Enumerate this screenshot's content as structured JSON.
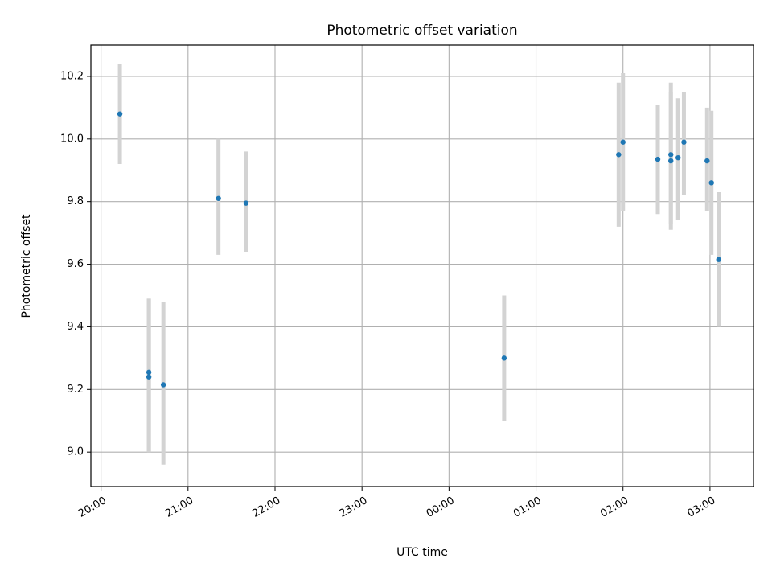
{
  "chart_data": {
    "type": "scatter",
    "title": "Photometric offset variation",
    "xlabel": "UTC time",
    "ylabel": "Photometric offset",
    "xlim": [
      "19:53",
      "03:30"
    ],
    "ylim": [
      8.89,
      10.3
    ],
    "x_ticks": [
      "20:00",
      "21:00",
      "22:00",
      "23:00",
      "00:00",
      "01:00",
      "02:00",
      "03:00"
    ],
    "y_ticks": [
      "9.0",
      "9.2",
      "9.4",
      "9.6",
      "9.8",
      "10.0",
      "10.2"
    ],
    "grid": true,
    "point_color": "#1f77b4",
    "errorbar_color": "#d3d3d3",
    "series": [
      {
        "points": [
          {
            "t": "20:13",
            "y": 10.08,
            "err_low": 9.92,
            "err_high": 10.24
          },
          {
            "t": "20:33",
            "y": 9.255,
            "err_low": 9.0,
            "err_high": 9.49
          },
          {
            "t": "20:33",
            "y": 9.24,
            "err_low": 9.0,
            "err_high": 9.49
          },
          {
            "t": "20:43",
            "y": 9.215,
            "err_low": 8.96,
            "err_high": 9.48
          },
          {
            "t": "21:21",
            "y": 9.81,
            "err_low": 9.63,
            "err_high": 10.0
          },
          {
            "t": "21:40",
            "y": 9.795,
            "err_low": 9.64,
            "err_high": 9.96
          },
          {
            "t": "00:38",
            "y": 9.3,
            "err_low": 9.1,
            "err_high": 9.5
          },
          {
            "t": "01:57",
            "y": 9.95,
            "err_low": 9.72,
            "err_high": 10.18
          },
          {
            "t": "02:00",
            "y": 9.99,
            "err_low": 9.77,
            "err_high": 10.21
          },
          {
            "t": "02:24",
            "y": 9.935,
            "err_low": 9.76,
            "err_high": 10.11
          },
          {
            "t": "02:33",
            "y": 9.95,
            "err_low": 9.73,
            "err_high": 10.18
          },
          {
            "t": "02:33",
            "y": 9.93,
            "err_low": 9.71,
            "err_high": 10.15
          },
          {
            "t": "02:38",
            "y": 9.94,
            "err_low": 9.74,
            "err_high": 10.13
          },
          {
            "t": "02:42",
            "y": 9.99,
            "err_low": 9.82,
            "err_high": 10.15
          },
          {
            "t": "02:58",
            "y": 9.93,
            "err_low": 9.77,
            "err_high": 10.1
          },
          {
            "t": "03:01",
            "y": 9.86,
            "err_low": 9.63,
            "err_high": 10.09
          },
          {
            "t": "03:06",
            "y": 9.615,
            "err_low": 9.4,
            "err_high": 9.83
          }
        ]
      }
    ]
  }
}
